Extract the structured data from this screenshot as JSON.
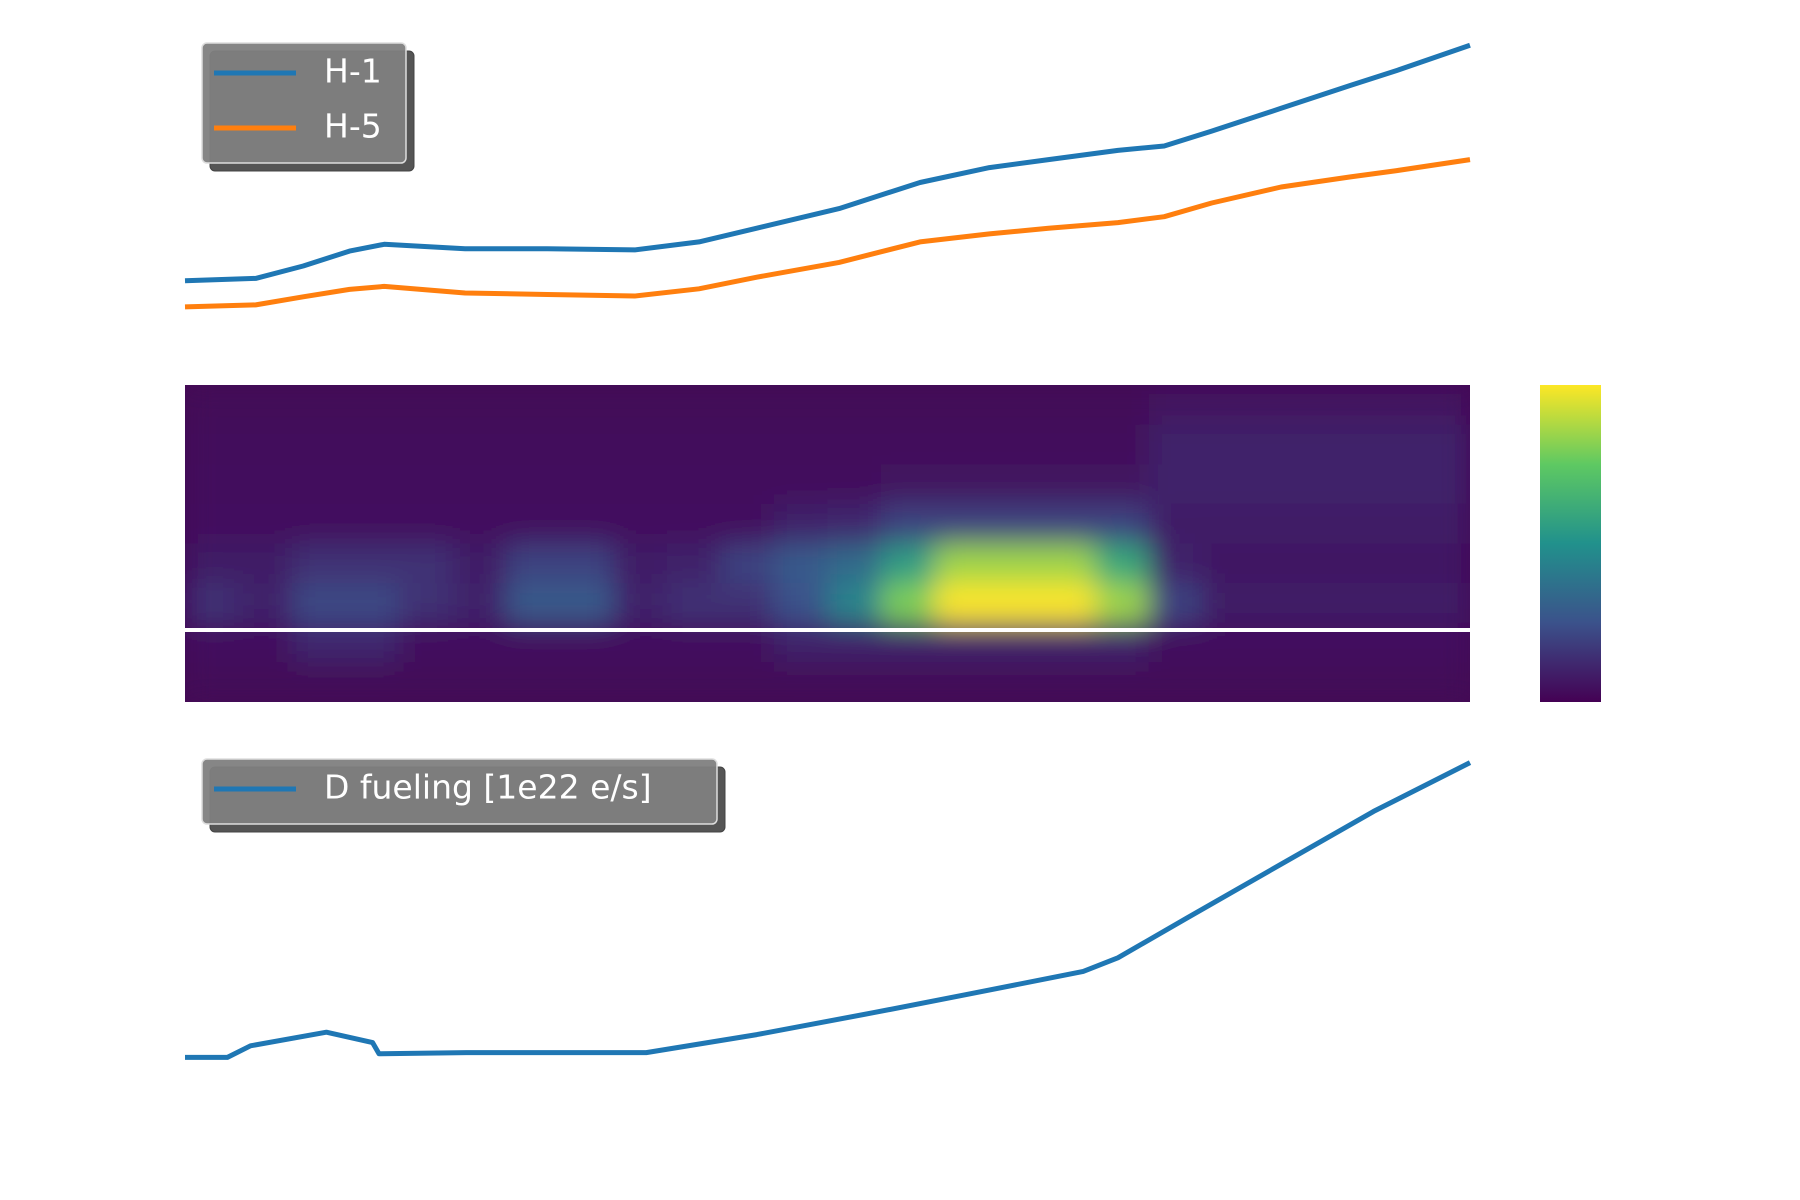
{
  "chart_data": [
    {
      "type": "line",
      "x": [
        0,
        5.5,
        9.2,
        12.8,
        15.5,
        21.8,
        28.2,
        35,
        40,
        44.5,
        50.9,
        57.2,
        62.6,
        67.2,
        72.6,
        76.2,
        79.9,
        85.3,
        90.7,
        94.3,
        100
      ],
      "series": [
        {
          "name": "H-1",
          "color": "#1f77b4",
          "values": [
            1.69,
            1.77,
            2.19,
            2.69,
            2.92,
            2.77,
            2.77,
            2.73,
            3.0,
            3.46,
            4.12,
            5.0,
            5.5,
            5.77,
            6.08,
            6.23,
            6.73,
            7.5,
            8.27,
            8.77,
            9.62
          ]
        },
        {
          "name": "H-5",
          "color": "#ff7f0e",
          "values": [
            0.81,
            0.88,
            1.15,
            1.4,
            1.5,
            1.28,
            1.23,
            1.18,
            1.42,
            1.81,
            2.31,
            3.0,
            3.27,
            3.46,
            3.65,
            3.85,
            4.31,
            4.85,
            5.19,
            5.4,
            5.77
          ]
        }
      ],
      "xlim": [
        0,
        100
      ],
      "ylim": [
        0,
        10
      ],
      "legend": "upper left"
    },
    {
      "type": "heatmap",
      "colormap": "viridis",
      "clim": [
        0,
        1
      ],
      "colorbar": true,
      "z": [
        [
          0.02,
          0.02,
          0.02,
          0.02,
          0.02,
          0.02,
          0.02,
          0.02,
          0.02,
          0.02,
          0.02,
          0.02,
          0.02,
          0.02,
          0.02,
          0.02,
          0.02,
          0.02,
          0.06,
          0.06,
          0.06,
          0.06,
          0.06,
          0.06
        ],
        [
          0.03,
          0.03,
          0.03,
          0.03,
          0.03,
          0.03,
          0.03,
          0.03,
          0.03,
          0.03,
          0.03,
          0.03,
          0.03,
          0.03,
          0.03,
          0.03,
          0.03,
          0.03,
          0.1,
          0.1,
          0.1,
          0.1,
          0.1,
          0.1
        ],
        [
          0.04,
          0.04,
          0.04,
          0.04,
          0.04,
          0.04,
          0.04,
          0.04,
          0.04,
          0.04,
          0.04,
          0.04,
          0.04,
          0.06,
          0.06,
          0.06,
          0.06,
          0.06,
          0.1,
          0.1,
          0.1,
          0.1,
          0.1,
          0.1
        ],
        [
          0.05,
          0.05,
          0.05,
          0.05,
          0.05,
          0.05,
          0.05,
          0.05,
          0.05,
          0.05,
          0.05,
          0.1,
          0.12,
          0.2,
          0.2,
          0.2,
          0.2,
          0.2,
          0.08,
          0.08,
          0.08,
          0.08,
          0.08,
          0.08
        ],
        [
          0.08,
          0.08,
          0.15,
          0.15,
          0.15,
          0.08,
          0.2,
          0.2,
          0.08,
          0.1,
          0.2,
          0.28,
          0.35,
          0.55,
          0.85,
          0.85,
          0.85,
          0.6,
          0.1,
          0.07,
          0.07,
          0.07,
          0.07,
          0.07
        ],
        [
          0.15,
          0.1,
          0.22,
          0.22,
          0.15,
          0.1,
          0.28,
          0.28,
          0.1,
          0.15,
          0.15,
          0.25,
          0.45,
          0.8,
          1,
          1,
          1,
          0.85,
          0.2,
          0.08,
          0.08,
          0.08,
          0.08,
          0.08
        ],
        [
          0.05,
          0.05,
          0.12,
          0.12,
          0.05,
          0.05,
          0.05,
          0.05,
          0.05,
          0.05,
          0.05,
          0.1,
          0.1,
          0.1,
          0.1,
          0.1,
          0.1,
          0.1,
          0.05,
          0.05,
          0.05,
          0.05,
          0.05,
          0.05
        ],
        [
          0.02,
          0.02,
          0.02,
          0.02,
          0.02,
          0.02,
          0.02,
          0.02,
          0.02,
          0.02,
          0.02,
          0.02,
          0.02,
          0.02,
          0.02,
          0.02,
          0.02,
          0.02,
          0.02,
          0.02,
          0.02,
          0.02,
          0.02,
          0.02
        ]
      ]
    },
    {
      "type": "line",
      "x": [
        0,
        3.3,
        5.1,
        11,
        14.6,
        15.1,
        21.9,
        35.9,
        44.5,
        53.6,
        60.8,
        69.9,
        72.6,
        78,
        85.3,
        92.5,
        100
      ],
      "series": [
        {
          "name": "D fueling [1e22 e/s]",
          "color": "#1f77b4",
          "values": [
            2.14,
            2.14,
            2.43,
            2.77,
            2.51,
            2.23,
            2.26,
            2.26,
            2.71,
            3.26,
            3.71,
            4.29,
            4.63,
            5.63,
            6.97,
            8.29,
            9.51
          ]
        }
      ],
      "xlim": [
        0,
        100
      ],
      "ylim": [
        0,
        10
      ],
      "legend": "upper left"
    }
  ]
}
